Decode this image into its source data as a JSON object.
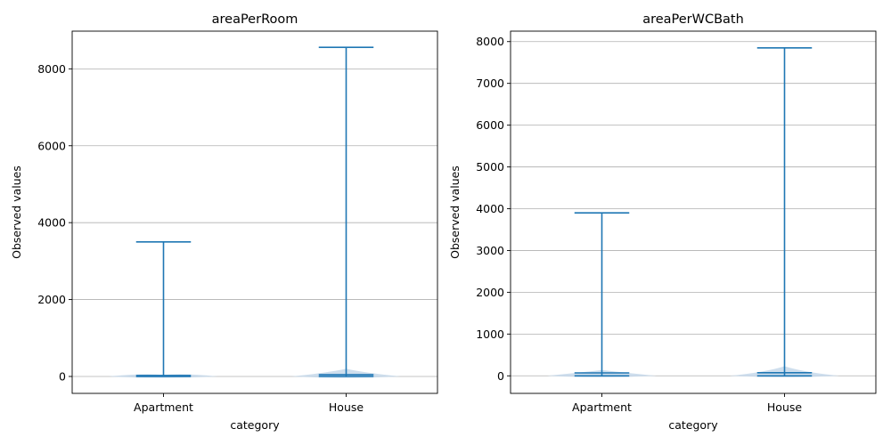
{
  "chart_data": [
    {
      "type": "violin",
      "title": "areaPerRoom",
      "xlabel": "category",
      "ylabel": "Observed values",
      "categories": [
        "Apartment",
        "House"
      ],
      "ylim": [
        -440,
        8980
      ],
      "yticks": [
        0,
        2000,
        4000,
        6000,
        8000
      ],
      "grid": "y",
      "color": "#1f77b4",
      "body_color": "#c5d8ea",
      "violins": [
        {
          "category": "Apartment",
          "min": 0,
          "max": 3500,
          "median": 25,
          "body_top": 40
        },
        {
          "category": "House",
          "min": 0,
          "max": 8560,
          "median": 45,
          "body_top": 200
        }
      ]
    },
    {
      "type": "violin",
      "title": "areaPerWCBath",
      "xlabel": "category",
      "ylabel": "Observed values",
      "categories": [
        "Apartment",
        "House"
      ],
      "ylim": [
        -420,
        8250
      ],
      "yticks": [
        0,
        1000,
        2000,
        3000,
        4000,
        5000,
        6000,
        7000,
        8000
      ],
      "grid": "y",
      "color": "#1f77b4",
      "body_color": "#c5d8ea",
      "violins": [
        {
          "category": "Apartment",
          "min": 0,
          "max": 3900,
          "median": 70,
          "body_top": 140
        },
        {
          "category": "House",
          "min": 0,
          "max": 7850,
          "median": 75,
          "body_top": 230
        }
      ]
    }
  ]
}
